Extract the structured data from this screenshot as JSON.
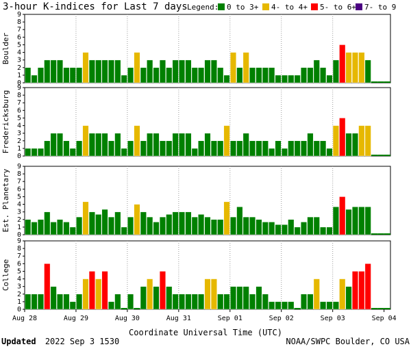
{
  "header": {
    "title": "3-hour K-indices for Last 7 days",
    "legend_label": "Legend:",
    "legend": [
      {
        "label": "0 to 3+",
        "color": "#008000"
      },
      {
        "label": "4- to 4+",
        "color": "#e6b800"
      },
      {
        "label": "5- to 6+",
        "color": "#ff0000"
      },
      {
        "label": "7- to 9",
        "color": "#4b0082"
      }
    ]
  },
  "footer": {
    "updated_word": "Updated",
    "updated_time": "2022 Sep  3 1530",
    "source": "NOAA/SWPC Boulder, CO USA"
  },
  "chart_data": {
    "type": "bar",
    "xlabel": "Coordinate Universal Time (UTC)",
    "x_ticks": [
      "Aug 28",
      "Aug 29",
      "Aug 30",
      "Aug 31",
      "Sep 01",
      "Sep 02",
      "Sep 03",
      "Sep 04"
    ],
    "ylim": [
      0,
      9
    ],
    "y_ticks": [
      0,
      1,
      2,
      3,
      4,
      5,
      6,
      7,
      8,
      9
    ],
    "panels": [
      {
        "name": "Boulder",
        "values": [
          2,
          1,
          2,
          3,
          3,
          3,
          2,
          2,
          2,
          4,
          3,
          3,
          3,
          3,
          3,
          1,
          2,
          4,
          2,
          3,
          2,
          3,
          2,
          3,
          3,
          3,
          2,
          2,
          3,
          3,
          2,
          1,
          4,
          2,
          4,
          2,
          2,
          2,
          2,
          1,
          1,
          1,
          1,
          2,
          2,
          3,
          2,
          1,
          3,
          5,
          4,
          4,
          4,
          3,
          0,
          0,
          0
        ]
      },
      {
        "name": "Fredericksburg",
        "values": [
          1,
          1,
          1,
          2,
          3,
          3,
          2,
          1,
          2,
          4,
          3,
          3,
          3,
          2,
          3,
          1,
          2,
          4,
          2,
          3,
          3,
          2,
          2,
          3,
          3,
          3,
          1,
          2,
          3,
          2,
          2,
          4,
          2,
          2,
          3,
          2,
          2,
          2,
          1,
          2,
          1,
          2,
          2,
          2,
          3,
          2,
          2,
          1,
          4,
          5,
          3,
          3,
          4,
          4,
          0,
          0,
          0
        ]
      },
      {
        "name": "Est. Planetary",
        "values": [
          2,
          1.67,
          2,
          3,
          1.67,
          2,
          1.67,
          1,
          2.33,
          4.33,
          3,
          2.67,
          3.33,
          2.33,
          3,
          1,
          2.33,
          4,
          3,
          2.33,
          1.67,
          2.33,
          2.67,
          3,
          3,
          3,
          2.33,
          2.67,
          2.33,
          2,
          2,
          4.33,
          2.33,
          3.67,
          2.33,
          2.33,
          2,
          1.67,
          1.67,
          1.33,
          1.33,
          2,
          1,
          1.67,
          2.33,
          2.33,
          1,
          1,
          3.67,
          5,
          3.33,
          3.67,
          3.67,
          3.67,
          0,
          0,
          0
        ]
      },
      {
        "name": "College",
        "values": [
          2,
          2,
          2,
          6,
          3,
          2,
          2,
          1,
          2,
          4,
          5,
          4,
          5,
          1,
          2,
          0,
          2,
          0,
          3,
          4,
          3,
          5,
          3,
          2,
          2,
          2,
          2,
          2,
          4,
          4,
          2,
          2,
          3,
          3,
          3,
          2,
          3,
          2,
          1,
          1,
          1,
          1,
          0,
          2,
          2,
          4,
          1,
          1,
          1,
          4,
          3,
          5,
          5,
          6,
          0,
          0,
          0
        ]
      }
    ]
  }
}
